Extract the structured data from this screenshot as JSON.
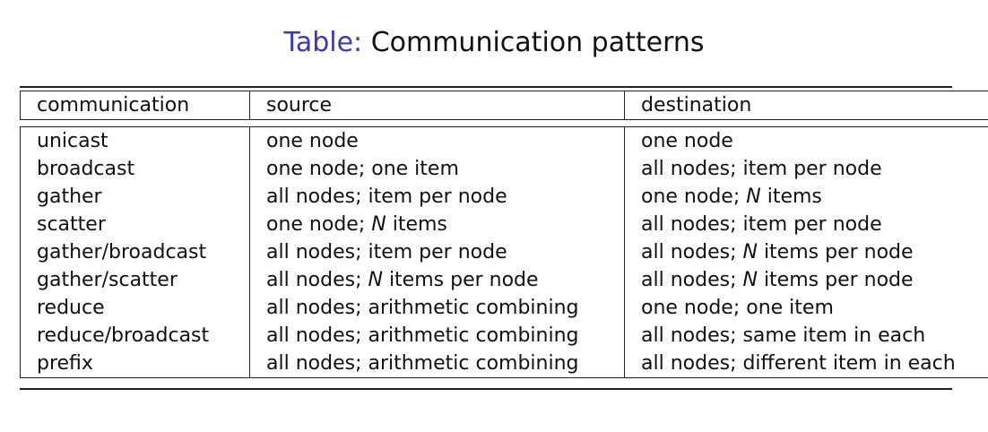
{
  "caption": {
    "label": "Table:",
    "text": "Communication patterns"
  },
  "header": {
    "communication": "communication",
    "source": "source",
    "destination": "destination"
  },
  "rows": [
    {
      "communication": "unicast",
      "source": "one node",
      "destination": "one node"
    },
    {
      "communication": "broadcast",
      "source": "one node; one item",
      "destination": "all nodes; item per node"
    },
    {
      "communication": "gather",
      "source": "all nodes; item per node",
      "destination": "one node; N items"
    },
    {
      "communication": "scatter",
      "source": "one node; N items",
      "destination": "all nodes; item per node"
    },
    {
      "communication": "gather/broadcast",
      "source": "all nodes; item per node",
      "destination": "all nodes; N items per node"
    },
    {
      "communication": "gather/scatter",
      "source": "all nodes; N items per node",
      "destination": "all nodes; N items per node"
    },
    {
      "communication": "reduce",
      "source": "all nodes; arithmetic combining",
      "destination": "one node; one item"
    },
    {
      "communication": "reduce/broadcast",
      "source": "all nodes; arithmetic combining",
      "destination": "all nodes; same item in each"
    },
    {
      "communication": "prefix",
      "source": "all nodes; arithmetic combining",
      "destination": "all nodes; different item in each"
    }
  ],
  "colors": {
    "caption_label": "#3a3ab4",
    "text": "#111111",
    "rules": "#222222",
    "highlight": "#9fc3d8"
  }
}
